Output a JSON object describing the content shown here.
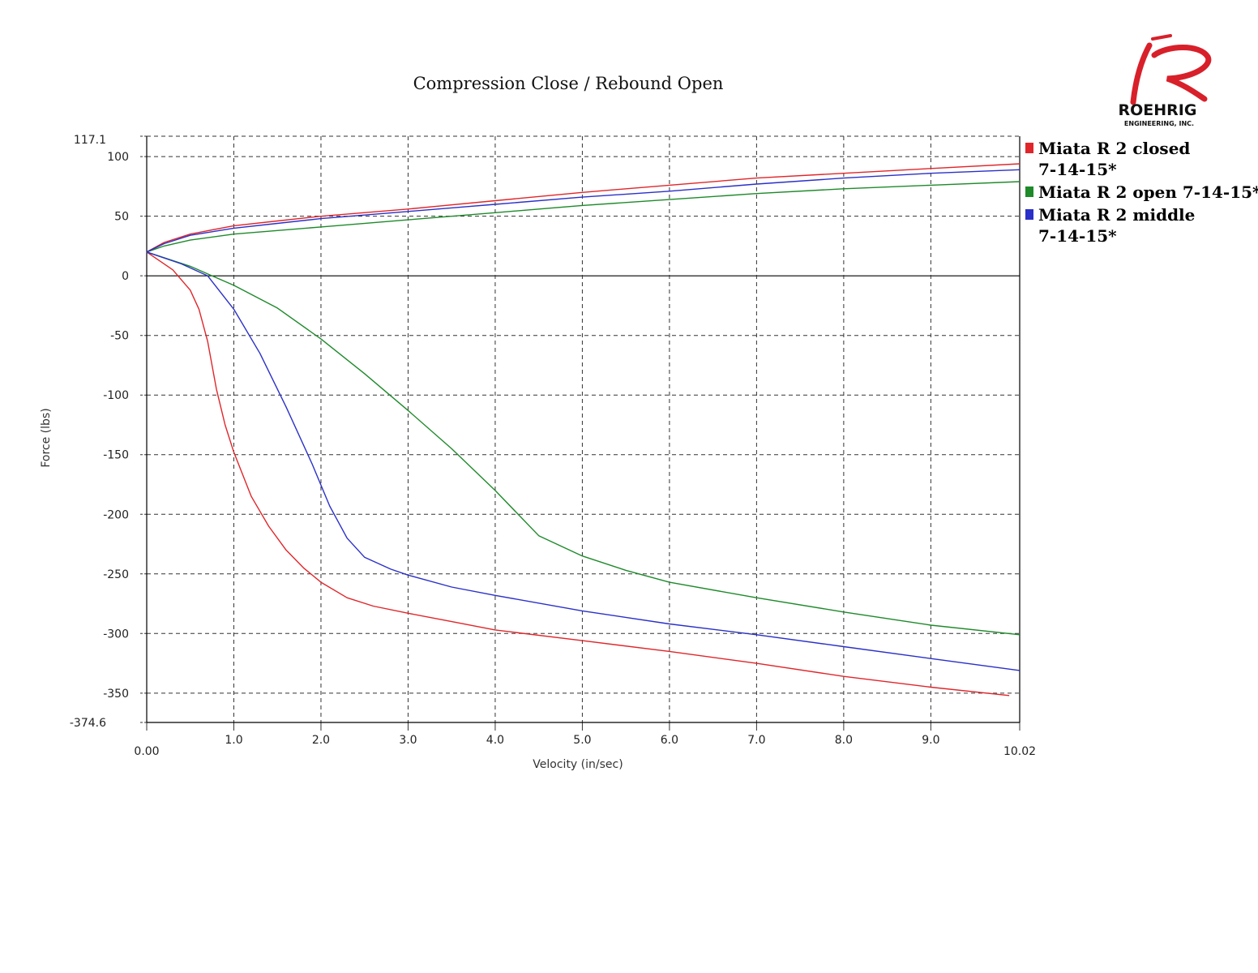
{
  "chart_data": {
    "type": "line",
    "title": "Compression Close / Rebound Open",
    "xlabel": "Velocity (in/sec)",
    "ylabel": "Force (lbs)",
    "xlim": [
      0,
      10.02
    ],
    "ylim": [
      -374.6,
      117.1
    ],
    "x_ticks": [
      0,
      1,
      2,
      3,
      4,
      5,
      6,
      7,
      8,
      9,
      10.02
    ],
    "x_tick_labels": [
      "0.00",
      "1.0",
      "2.0",
      "3.0",
      "4.0",
      "5.0",
      "6.0",
      "7.0",
      "8.0",
      "9.0",
      "10.02"
    ],
    "y_ticks": [
      117.1,
      100,
      50,
      0,
      -50,
      -100,
      -150,
      -200,
      -250,
      -300,
      -350,
      -374.6
    ],
    "y_tick_labels": [
      "117.1",
      "100",
      "50",
      "0",
      "-50",
      "-100",
      "-150",
      "-200",
      "-250",
      "-300",
      "-350",
      "-374.6"
    ],
    "grid": true,
    "legend_position": "right",
    "series": [
      {
        "name": "Miata R 2 closed 7-14-15*",
        "legend_lines": [
          "Miata R 2 closed",
          "7-14-15*"
        ],
        "color": "#e0262a",
        "rebound": {
          "x": [
            0,
            0.2,
            0.5,
            1,
            1.5,
            2,
            3,
            4,
            5,
            6,
            7,
            8,
            9,
            10.02
          ],
          "y": [
            20,
            28,
            35,
            42,
            46,
            50,
            56,
            63,
            70,
            76,
            82,
            86,
            90,
            94
          ]
        },
        "compression": {
          "x": [
            0,
            0.3,
            0.5,
            0.6,
            0.7,
            0.8,
            0.9,
            1.0,
            1.2,
            1.4,
            1.6,
            1.8,
            2.0,
            2.3,
            2.6,
            3,
            3.5,
            4,
            5,
            6,
            7,
            8,
            9,
            9.9
          ],
          "y": [
            20,
            5,
            -12,
            -28,
            -55,
            -95,
            -125,
            -148,
            -185,
            -210,
            -230,
            -245,
            -257,
            -270,
            -277,
            -283,
            -290,
            -297,
            -306,
            -315,
            -325,
            -336,
            -345,
            -352
          ]
        }
      },
      {
        "name": "Miata R 2 open 7-14-15*",
        "legend_lines": [
          "Miata R 2 open 7-14-15*"
        ],
        "color": "#1e8a2a",
        "rebound": {
          "x": [
            0,
            0.2,
            0.5,
            1,
            1.5,
            2,
            3,
            4,
            5,
            6,
            7,
            8,
            9,
            10.02
          ],
          "y": [
            20,
            25,
            30,
            35,
            38,
            41,
            47,
            53,
            59,
            64,
            69,
            73,
            76,
            79
          ]
        },
        "compression": {
          "x": [
            0,
            0.5,
            1.0,
            1.5,
            2.0,
            2.5,
            3.0,
            3.5,
            4.0,
            4.5,
            5.0,
            5.5,
            6.0,
            7,
            8,
            9,
            10.02
          ],
          "y": [
            20,
            8,
            -8,
            -27,
            -53,
            -82,
            -113,
            -145,
            -180,
            -218,
            -235,
            -247,
            -257,
            -270,
            -282,
            -293,
            -301
          ]
        }
      },
      {
        "name": "Miata R 2 middle 7-14-15*",
        "legend_lines": [
          "Miata R 2 middle",
          "7-14-15*"
        ],
        "color": "#2a30c8",
        "rebound": {
          "x": [
            0,
            0.2,
            0.5,
            1,
            1.5,
            2,
            3,
            4,
            5,
            6,
            7,
            8,
            9,
            10.02
          ],
          "y": [
            20,
            27,
            34,
            40,
            44,
            48,
            54,
            60,
            66,
            71,
            77,
            82,
            86,
            89
          ]
        },
        "compression": {
          "x": [
            0,
            0.4,
            0.7,
            1.0,
            1.3,
            1.6,
            1.9,
            2.1,
            2.3,
            2.5,
            2.8,
            3.0,
            3.5,
            4.0,
            5,
            6,
            7,
            8,
            9,
            10.02
          ],
          "y": [
            20,
            10,
            0,
            -28,
            -65,
            -110,
            -158,
            -193,
            -220,
            -236,
            -246,
            -251,
            -261,
            -268,
            -281,
            -292,
            -301,
            -311,
            -321,
            -331
          ]
        }
      }
    ]
  },
  "logo": {
    "name": "ROEHRIG",
    "sub": "ENGINEERING, INC.",
    "glyph": "R"
  }
}
